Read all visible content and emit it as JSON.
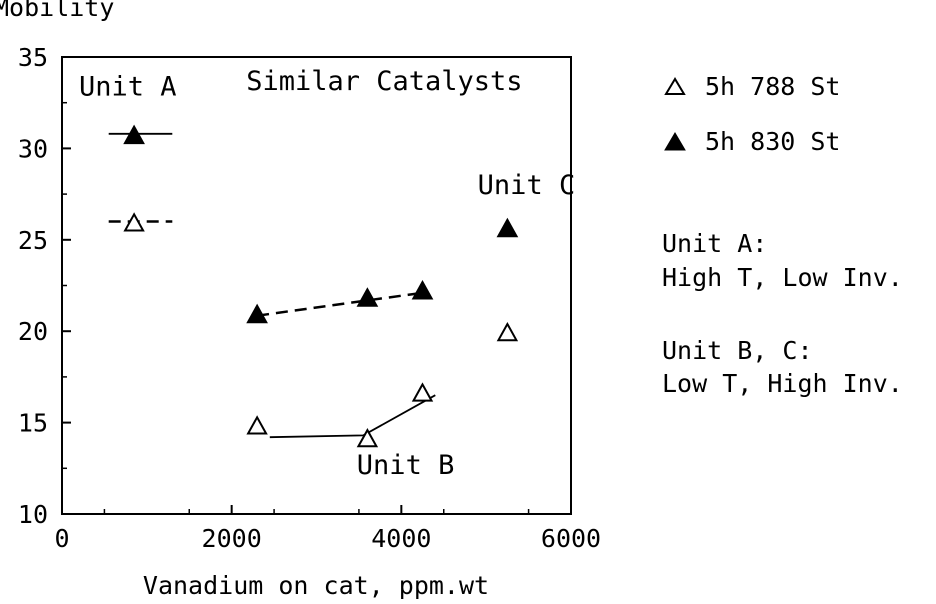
{
  "chart_data": {
    "type": "scatter",
    "title": "",
    "ylabel": "Mobility",
    "xlabel": "Vanadium on cat, ppm.wt",
    "xlim": [
      0,
      6000
    ],
    "ylim": [
      10,
      35
    ],
    "x_ticks": [
      0,
      2000,
      4000,
      6000
    ],
    "y_ticks": [
      10,
      15,
      20,
      25,
      30,
      35
    ],
    "grid": false,
    "legend_position": "right, outside plot",
    "series": [
      {
        "name": "5h 788 St",
        "marker": "open-triangle",
        "points": [
          {
            "x": 850,
            "y": 25.9
          },
          {
            "x": 2300,
            "y": 14.8
          },
          {
            "x": 3600,
            "y": 14.1
          },
          {
            "x": 4250,
            "y": 16.6
          },
          {
            "x": 5250,
            "y": 19.9
          }
        ]
      },
      {
        "name": "5h 830 St",
        "marker": "filled-triangle",
        "points": [
          {
            "x": 850,
            "y": 30.7
          },
          {
            "x": 2300,
            "y": 20.9
          },
          {
            "x": 3600,
            "y": 21.8
          },
          {
            "x": 4250,
            "y": 22.2
          },
          {
            "x": 5250,
            "y": 25.6
          }
        ]
      }
    ],
    "lines": [
      {
        "style": "solid",
        "points": [
          {
            "x": 550,
            "y": 30.8
          },
          {
            "x": 1300,
            "y": 30.8
          }
        ]
      },
      {
        "style": "dashed",
        "points": [
          {
            "x": 550,
            "y": 26.0
          },
          {
            "x": 1300,
            "y": 26.0
          }
        ]
      },
      {
        "style": "dashed",
        "points": [
          {
            "x": 2300,
            "y": 20.85
          },
          {
            "x": 4250,
            "y": 22.1
          }
        ]
      },
      {
        "style": "solid",
        "points": [
          {
            "x": 2450,
            "y": 14.2
          },
          {
            "x": 3550,
            "y": 14.3
          },
          {
            "x": 4400,
            "y": 16.5
          }
        ]
      }
    ],
    "annotations": [
      {
        "text": "Unit A",
        "x": 200,
        "y": 32.9
      },
      {
        "text": "Similar Catalysts",
        "x": 3800,
        "y": 33.2
      },
      {
        "text": "Unit C",
        "x": 4900,
        "y": 27.5
      },
      {
        "text": "Unit B",
        "x": 4050,
        "y": 12.2
      }
    ],
    "notes": [
      {
        "title": "Unit A:",
        "text": "High T, Low Inv."
      },
      {
        "title": "Unit B, C:",
        "text": "Low T, High Inv."
      }
    ]
  }
}
